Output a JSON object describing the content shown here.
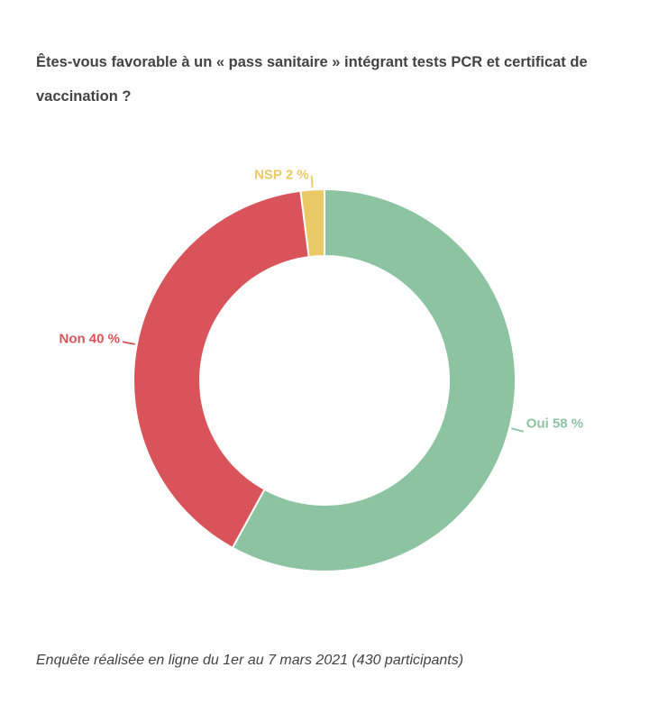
{
  "page": {
    "background": "#ffffff"
  },
  "chart_data": {
    "type": "pie",
    "subtype": "donut",
    "title": "Êtes-vous favorable à un « pass sanitaire » intégrant tests PCR et certificat de vaccination ?",
    "footnote": "Enquête réalisée en ligne du 1er au 7 mars 2021 (430 participants)",
    "unit": "%",
    "participants": 430,
    "legend_position": "none",
    "labels_style": "outside-connector",
    "start_angle": "top",
    "direction": "clockwise",
    "slices": [
      {
        "label": "Oui",
        "value": 58,
        "display": "Oui 58 %",
        "color": "#8CC3A1"
      },
      {
        "label": "Non",
        "value": 40,
        "display": "Non 40 %",
        "color": "#D8535A"
      },
      {
        "label": "NSP",
        "value": 2,
        "display": "NSP 2 %",
        "color": "#EBC964"
      }
    ]
  }
}
